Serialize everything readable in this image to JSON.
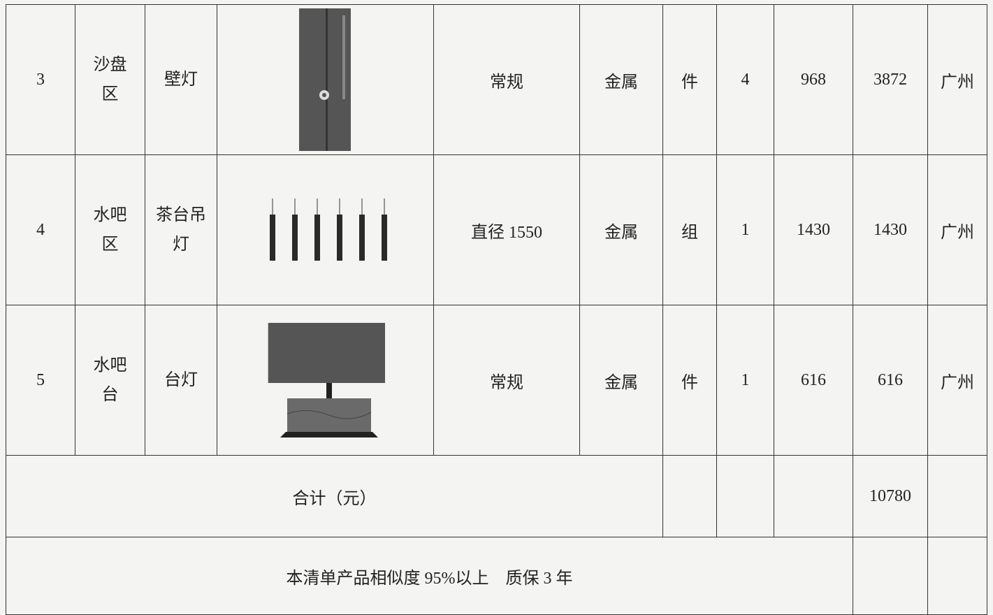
{
  "table": {
    "rows": [
      {
        "no": 3,
        "area": "沙盘区",
        "name": "壁灯",
        "spec": "常规",
        "material": "金属",
        "unit": "件",
        "qty": 4,
        "price": 968,
        "amount": 3872,
        "origin": "广州"
      },
      {
        "no": 4,
        "area": "水吧区",
        "name": "茶台吊灯",
        "spec": "直径 1550",
        "material": "金属",
        "unit": "组",
        "qty": 1,
        "price": 1430,
        "amount": 1430,
        "origin": "广州"
      },
      {
        "no": 5,
        "area": "水吧台",
        "name": "台灯",
        "spec": "常规",
        "material": "金属",
        "unit": "件",
        "qty": 1,
        "price": 616,
        "amount": 616,
        "origin": "广州"
      }
    ],
    "total": {
      "label": "合计（元）",
      "amount": 10780
    },
    "note": "本清单产品相似度 95%以上　质保 3 年"
  }
}
